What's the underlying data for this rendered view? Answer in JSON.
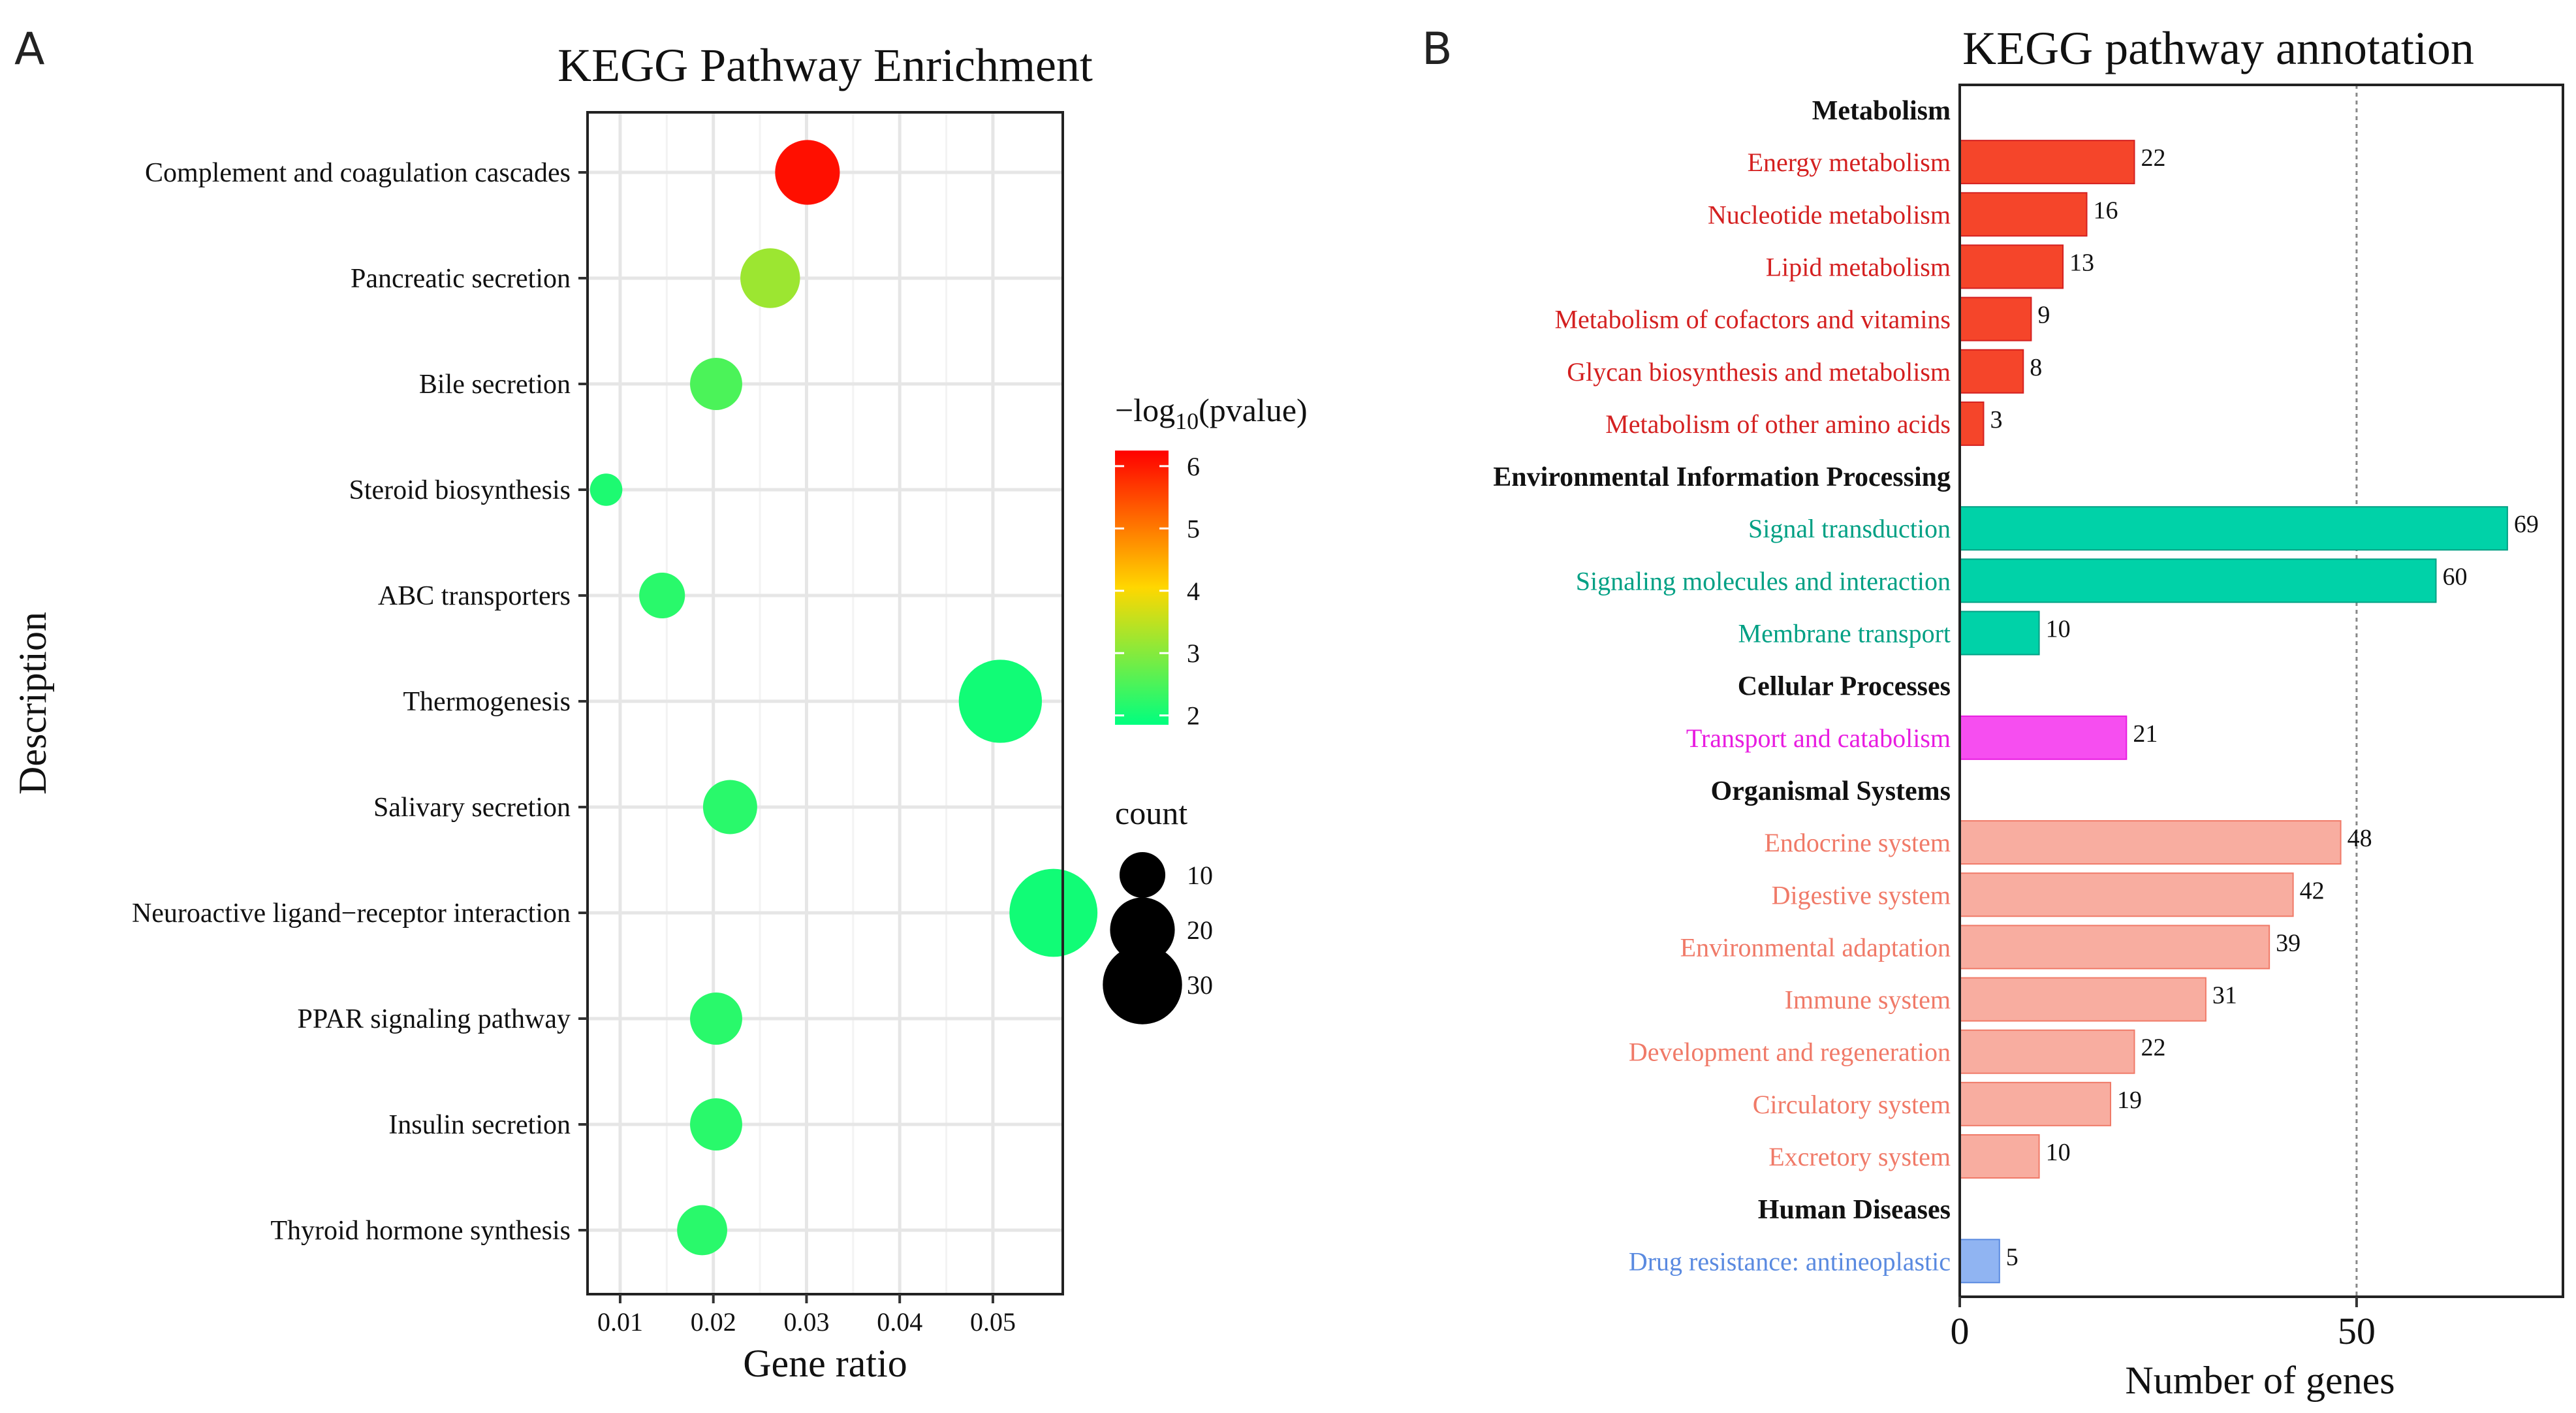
{
  "panel_a": {
    "panel_label": "A",
    "chart_data": {
      "type": "scatter",
      "title": "KEGG Pathway Enrichment",
      "xlabel": "Gene ratio",
      "ylabel": "Description",
      "xlim": [
        0.0065,
        0.0575
      ],
      "xticks": [
        0.01,
        0.02,
        0.03,
        0.04,
        0.05
      ],
      "xtick_labels": [
        "0.01",
        "0.02",
        "0.03",
        "0.04",
        "0.05"
      ],
      "grid": true,
      "categories": [
        "Complement and coagulation cascades",
        "Pancreatic secretion",
        "Bile secretion",
        "Steroid biosynthesis",
        "ABC transporters",
        "Thermogenesis",
        "Salivary secretion",
        "Neuroactive ligand−receptor interaction",
        "PPAR signaling pathway",
        "Insulin secretion",
        "Thyroid hormone synthesis"
      ],
      "gene_ratio": [
        0.0301,
        0.0261,
        0.0203,
        0.0085,
        0.0145,
        0.0508,
        0.0218,
        0.0565,
        0.0203,
        0.0203,
        0.0188
      ],
      "count": [
        20,
        17,
        13,
        5,
        10,
        33,
        14,
        37,
        13,
        13,
        12
      ],
      "neg_log10_pvalue": [
        6.1,
        3.2,
        2.5,
        2.1,
        2.2,
        2.0,
        2.2,
        2.0,
        2.2,
        2.2,
        2.2
      ],
      "color_legend": {
        "title_prefix": "−log",
        "title_sub": "10",
        "title_suffix": "(pvalue)",
        "ticks": [
          6,
          5,
          4,
          3,
          2
        ],
        "tick_labels": [
          "6",
          "5",
          "4",
          "3",
          "2"
        ],
        "range": [
          1.85,
          6.25
        ],
        "colors": [
          "#00ff7f",
          "#ffd700",
          "#ff0000"
        ]
      },
      "size_legend": {
        "title": "count",
        "values": [
          10,
          20,
          30
        ],
        "labels": [
          "10",
          "20",
          "30"
        ]
      },
      "legend_position": "right"
    }
  },
  "panel_b": {
    "panel_label": "B",
    "chart_data": {
      "type": "bar",
      "orientation": "horizontal",
      "title": "KEGG pathway annotation",
      "xlabel": "Number of genes",
      "xlim": [
        0,
        76
      ],
      "xticks": [
        0,
        50
      ],
      "xtick_labels": [
        "0",
        "50"
      ],
      "reference_line": 50,
      "groups": [
        {
          "name": "Metabolism",
          "color": "#f5452a",
          "text_color": "#d42020",
          "items": [
            {
              "label": "Energy metabolism",
              "value": 22
            },
            {
              "label": "Nucleotide metabolism",
              "value": 16
            },
            {
              "label": "Lipid metabolism",
              "value": 13
            },
            {
              "label": "Metabolism of cofactors and vitamins",
              "value": 9
            },
            {
              "label": "Glycan biosynthesis and metabolism",
              "value": 8
            },
            {
              "label": "Metabolism of other amino acids",
              "value": 3
            }
          ]
        },
        {
          "name": "Environmental Information Processing",
          "color": "#00d2a8",
          "text_color": "#00a084",
          "items": [
            {
              "label": "Signal transduction",
              "value": 69
            },
            {
              "label": "Signaling molecules and interaction",
              "value": 60
            },
            {
              "label": "Membrane transport",
              "value": 10
            }
          ]
        },
        {
          "name": "Cellular Processes",
          "color": "#f64ef0",
          "text_color": "#e81ce0",
          "items": [
            {
              "label": "Transport and catabolism",
              "value": 21
            }
          ]
        },
        {
          "name": "Organismal Systems",
          "color": "#f8ada0",
          "text_color": "#f07a68",
          "items": [
            {
              "label": "Endocrine system",
              "value": 48
            },
            {
              "label": "Digestive system",
              "value": 42
            },
            {
              "label": "Environmental adaptation",
              "value": 39
            },
            {
              "label": "Immune system",
              "value": 31
            },
            {
              "label": "Development and regeneration",
              "value": 22
            },
            {
              "label": "Circulatory system",
              "value": 19
            },
            {
              "label": "Excretory system",
              "value": 10
            }
          ]
        },
        {
          "name": "Human Diseases",
          "color": "#90b4f2",
          "text_color": "#5a8ae0",
          "items": [
            {
              "label": "Drug resistance: antineoplastic",
              "value": 5
            }
          ]
        }
      ]
    }
  }
}
